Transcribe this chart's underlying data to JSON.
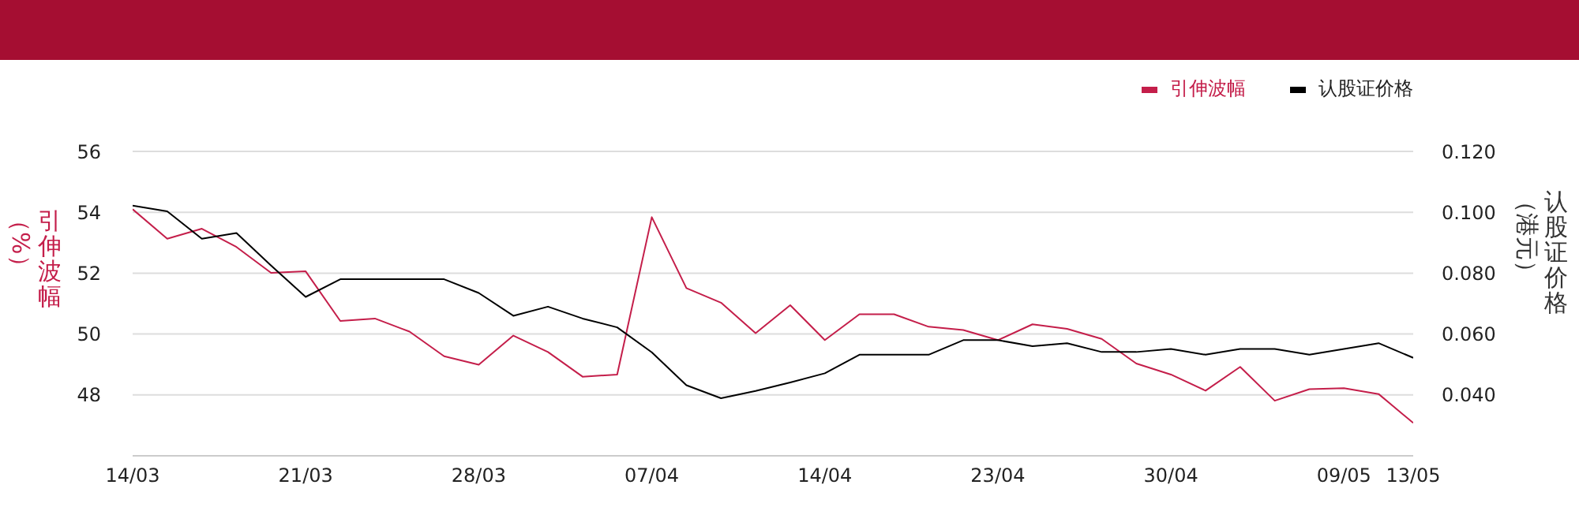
{
  "chart_data": {
    "type": "line",
    "ylabel": "引伸波幅（%）",
    "y2label": "认股证价格（港元）",
    "categories": [
      "14/03",
      null,
      null,
      null,
      null,
      "21/03",
      null,
      null,
      null,
      null,
      "28/03",
      null,
      null,
      null,
      null,
      "07/04",
      null,
      null,
      null,
      null,
      "14/04",
      null,
      null,
      null,
      null,
      "23/04",
      null,
      null,
      null,
      null,
      "30/04",
      null,
      null,
      null,
      null,
      "09/05",
      null,
      "13/05"
    ],
    "series": [
      {
        "name": "引伸波幅",
        "color": "#c41e4a",
        "values": [
          54.1,
          53.13,
          53.46,
          52.86,
          52.01,
          52.06,
          50.43,
          50.51,
          50.08,
          49.27,
          48.99,
          49.95,
          49.41,
          48.6,
          48.67,
          53.84,
          51.51,
          51.03,
          50.03,
          50.95,
          49.8,
          50.65,
          50.65,
          50.24,
          50.13,
          49.8,
          50.32,
          50.17,
          49.84,
          49.03,
          48.67,
          48.14,
          48.92,
          47.81,
          48.19,
          48.22,
          48.03,
          47.08
        ]
      },
      {
        "name": "认股证价格",
        "color": "#000000",
        "axis": "y2",
        "values": [
          0.1022,
          0.1003,
          0.0913,
          0.0932,
          0.0825,
          0.0722,
          0.078,
          0.078,
          0.078,
          0.078,
          0.0735,
          0.066,
          0.069,
          0.0651,
          0.0622,
          0.054,
          0.0432,
          0.0389,
          0.0413,
          0.0441,
          0.0471,
          0.0532,
          0.0532,
          0.0532,
          0.058,
          0.058,
          0.056,
          0.057,
          0.0541,
          0.0541,
          0.0551,
          0.0532,
          0.0551,
          0.0551,
          0.0532,
          0.0551,
          0.057,
          0.0522
        ]
      }
    ],
    "ylim": [
      46,
      56
    ],
    "yticks": [
      48,
      50,
      52,
      54,
      56
    ],
    "y2lim": [
      0.02,
      0.12
    ],
    "y2ticks": [
      {
        "value": 0.04,
        "label": "0.040"
      },
      {
        "value": 0.06,
        "label": "0.060"
      },
      {
        "value": 0.08,
        "label": "0.080"
      },
      {
        "value": 0.1,
        "label": "0.100"
      },
      {
        "value": 0.12,
        "label": "0.120"
      }
    ],
    "grid": "y",
    "legend": "top right",
    "marker": "none",
    "line_style": "solid"
  }
}
